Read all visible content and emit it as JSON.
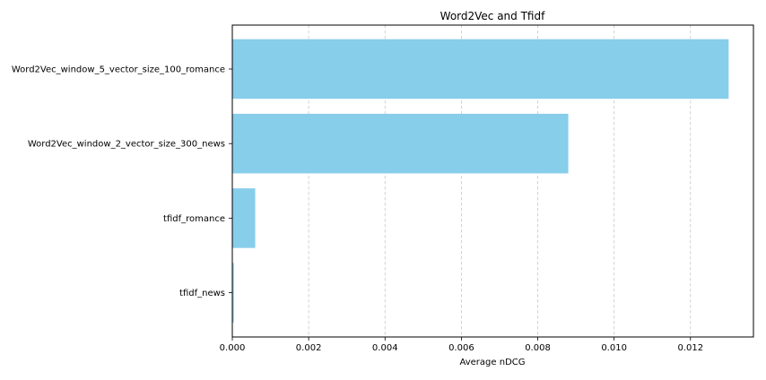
{
  "chart_data": {
    "type": "bar",
    "orientation": "horizontal",
    "title": "Word2Vec and Tfidf",
    "xlabel": "Average nDCG",
    "ylabel": "",
    "categories": [
      "Word2Vec_window_5_vector_size_100_romance",
      "Word2Vec_window_2_vector_size_300_news",
      "tfidf_romance",
      "tfidf_news"
    ],
    "values": [
      0.013,
      0.0088,
      0.0006,
      4e-05
    ],
    "xlim": [
      0,
      0.01365
    ],
    "xticks": [
      "0.000",
      "0.002",
      "0.004",
      "0.006",
      "0.008",
      "0.010",
      "0.012"
    ],
    "grid": "x-axis dashed",
    "bar_color": "#87ceeb"
  }
}
